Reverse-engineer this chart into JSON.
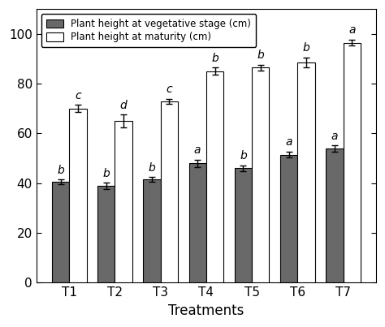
{
  "categories": [
    "T1",
    "T2",
    "T3",
    "T4",
    "T5",
    "T6",
    "T7"
  ],
  "vegetative_values": [
    40.5,
    39.0,
    41.5,
    48.0,
    46.0,
    51.5,
    54.0
  ],
  "vegetative_errors": [
    1.0,
    1.2,
    1.0,
    1.5,
    1.2,
    1.2,
    1.2
  ],
  "maturity_values": [
    70.0,
    65.0,
    73.0,
    85.0,
    86.5,
    88.5,
    96.5
  ],
  "maturity_errors": [
    1.5,
    2.5,
    1.0,
    1.5,
    1.2,
    2.0,
    1.2
  ],
  "vegetative_labels": [
    "b",
    "b",
    "b",
    "a",
    "b",
    "a",
    "a"
  ],
  "maturity_labels": [
    "c",
    "d",
    "c",
    "b",
    "b",
    "b",
    "a"
  ],
  "vegetative_color": "#696969",
  "maturity_color": "#ffffff",
  "bar_edge_color": "#000000",
  "legend_label_veg": "Plant height at vegetative stage (cm)",
  "legend_label_mat": "Plant height at maturity (cm)",
  "xlabel": "Treatments",
  "ylim": [
    0,
    110
  ],
  "yticks": [
    0,
    20,
    40,
    60,
    80,
    100
  ],
  "bar_width": 0.38,
  "figsize": [
    4.74,
    4.03
  ],
  "dpi": 100
}
